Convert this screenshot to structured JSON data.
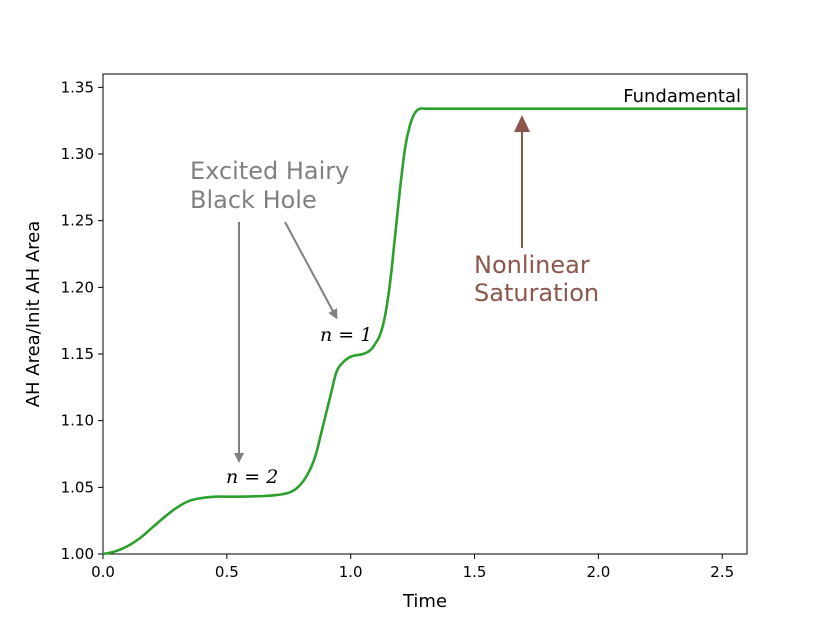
{
  "chart_data": {
    "type": "line",
    "xlabel": "Time",
    "ylabel": "AH Area/Init AH Area",
    "xlim": [
      0.0,
      2.6
    ],
    "ylim": [
      1.0,
      1.36
    ],
    "xticks": [
      "0.0",
      "0.5",
      "1.0",
      "1.5",
      "2.0",
      "2.5"
    ],
    "yticks": [
      "1.00",
      "1.05",
      "1.10",
      "1.15",
      "1.20",
      "1.25",
      "1.30",
      "1.35"
    ],
    "grid": false,
    "series": [
      {
        "name": "Fundamental",
        "color": "#2ca02c",
        "x": [
          0.0,
          0.05,
          0.1,
          0.15,
          0.2,
          0.25,
          0.3,
          0.35,
          0.4,
          0.45,
          0.5,
          0.55,
          0.6,
          0.65,
          0.7,
          0.75,
          0.78,
          0.81,
          0.84,
          0.86,
          0.88,
          0.9,
          0.92,
          0.94,
          0.96,
          1.0,
          1.05,
          1.08,
          1.1,
          1.12,
          1.14,
          1.16,
          1.18,
          1.2,
          1.22,
          1.24,
          1.26,
          1.28,
          1.3,
          1.35,
          1.5,
          2.0,
          2.6
        ],
        "y": [
          1.0,
          1.002,
          1.006,
          1.012,
          1.02,
          1.028,
          1.035,
          1.04,
          1.042,
          1.043,
          1.043,
          1.043,
          1.0432,
          1.0435,
          1.0442,
          1.046,
          1.049,
          1.055,
          1.065,
          1.075,
          1.09,
          1.105,
          1.12,
          1.135,
          1.142,
          1.148,
          1.15,
          1.153,
          1.158,
          1.165,
          1.18,
          1.205,
          1.24,
          1.275,
          1.305,
          1.322,
          1.331,
          1.334,
          1.334,
          1.334,
          1.334,
          1.334,
          1.334
        ]
      }
    ],
    "annotations": {
      "fundamental_label": "Fundamental",
      "excited_line1": "Excited Hairy",
      "excited_line2": "Black Hole",
      "n1": "n = 1",
      "n2": "n = 2",
      "nonlinear_line1": "Nonlinear",
      "nonlinear_line2": "Saturation",
      "excited_color": "#808080",
      "nonlinear_color": "#8c564b"
    }
  }
}
